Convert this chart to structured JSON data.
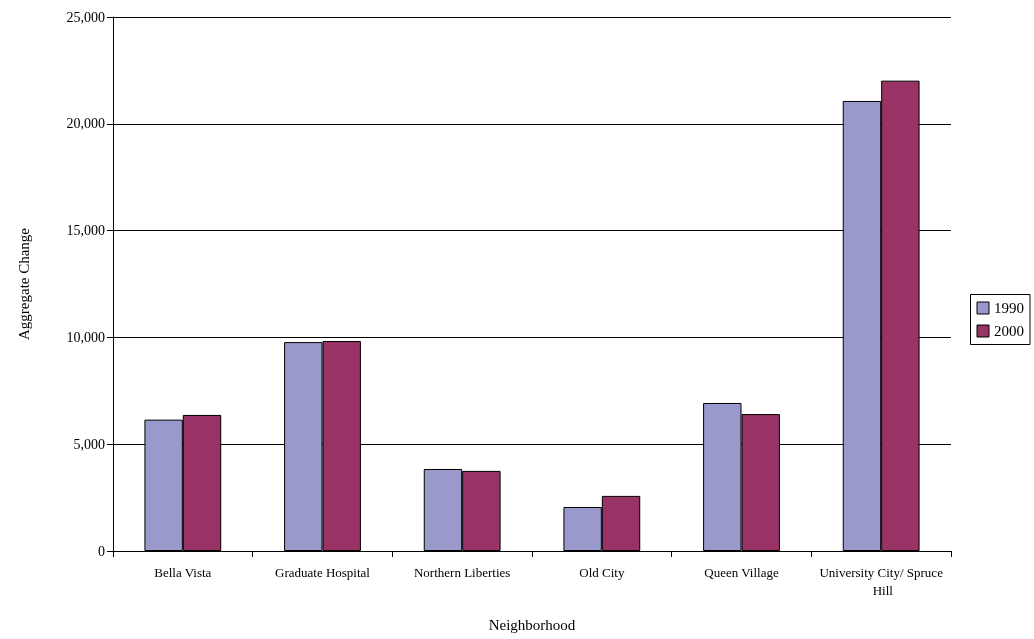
{
  "chart_data": {
    "type": "bar",
    "xlabel": "Neighborhood",
    "ylabel": "Aggregate Change",
    "categories": [
      "Bella Vista",
      "Graduate Hospital",
      "Northern Liberties",
      "Old City",
      "Queen Village",
      "University City/ Spruce Hill"
    ],
    "series": [
      {
        "name": "1990",
        "color": "#9999cc",
        "values": [
          6150,
          9780,
          3840,
          2060,
          6930,
          21070
        ]
      },
      {
        "name": "2000",
        "color": "#993366",
        "values": [
          6370,
          9830,
          3750,
          2580,
          6410,
          22020
        ]
      }
    ],
    "ylim": [
      0,
      25000
    ],
    "yticks": [
      {
        "value": 0,
        "label": "0"
      },
      {
        "value": 5000,
        "label": "5,000"
      },
      {
        "value": 10000,
        "label": "10,000"
      },
      {
        "value": 15000,
        "label": "15,000"
      },
      {
        "value": 20000,
        "label": "20,000"
      },
      {
        "value": 25000,
        "label": "25,000"
      }
    ],
    "grid": "y",
    "legend": "right"
  }
}
